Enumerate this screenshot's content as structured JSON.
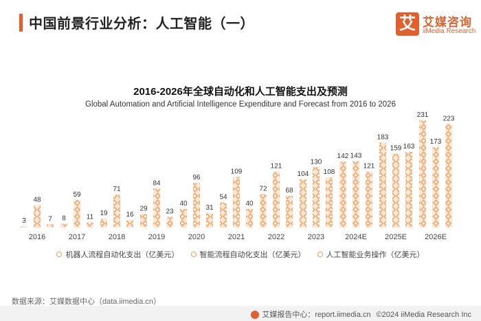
{
  "header": {
    "title": "中国前景行业分析：人工智能（一）"
  },
  "logo": {
    "box_char": "艾",
    "name_cn": "艾媒咨询",
    "name_en": "iiMedia Research"
  },
  "colors": {
    "accent": "#e0602e",
    "bar_light": "#f7c79f",
    "bar_mid": "#f0a060",
    "bar_dark": "#e5703a"
  },
  "chart_data": {
    "type": "bar",
    "title": "2016-2026年全球自动化和人工智能支出及预测",
    "subtitle": "Global Automation and Artificial Intelligence Expenditure and Forecast from 2016 to 2026",
    "categories": [
      "2016",
      "2017",
      "2018",
      "2019",
      "2020",
      "2021",
      "2022",
      "2023",
      "2024E",
      "2025E",
      "2026E"
    ],
    "series": [
      {
        "name": "机器人流程自动化支出（亿美元）",
        "values": [
          3,
          8,
          19,
          29,
          40,
          54,
          72,
          104,
          142,
          183,
          231
        ]
      },
      {
        "name": "智能流程自动化支出（亿美元）",
        "values": [
          48,
          59,
          71,
          84,
          96,
          109,
          121,
          130,
          143,
          159,
          173
        ]
      },
      {
        "name": "人工智能业务操作（亿美元）",
        "values": [
          7,
          11,
          16,
          23,
          31,
          40,
          68,
          108,
          121,
          163,
          223
        ]
      }
    ],
    "xlabel": "",
    "ylabel": "",
    "ylim": [
      0,
      240
    ],
    "legend": "bottom"
  },
  "source": "数据来源：艾媒数据中心（data.iimedia.cn）",
  "footer": {
    "report_site": "艾媒报告中心：report.iimedia.cn",
    "copyright": "©2024  iiMedia Research Inc"
  }
}
